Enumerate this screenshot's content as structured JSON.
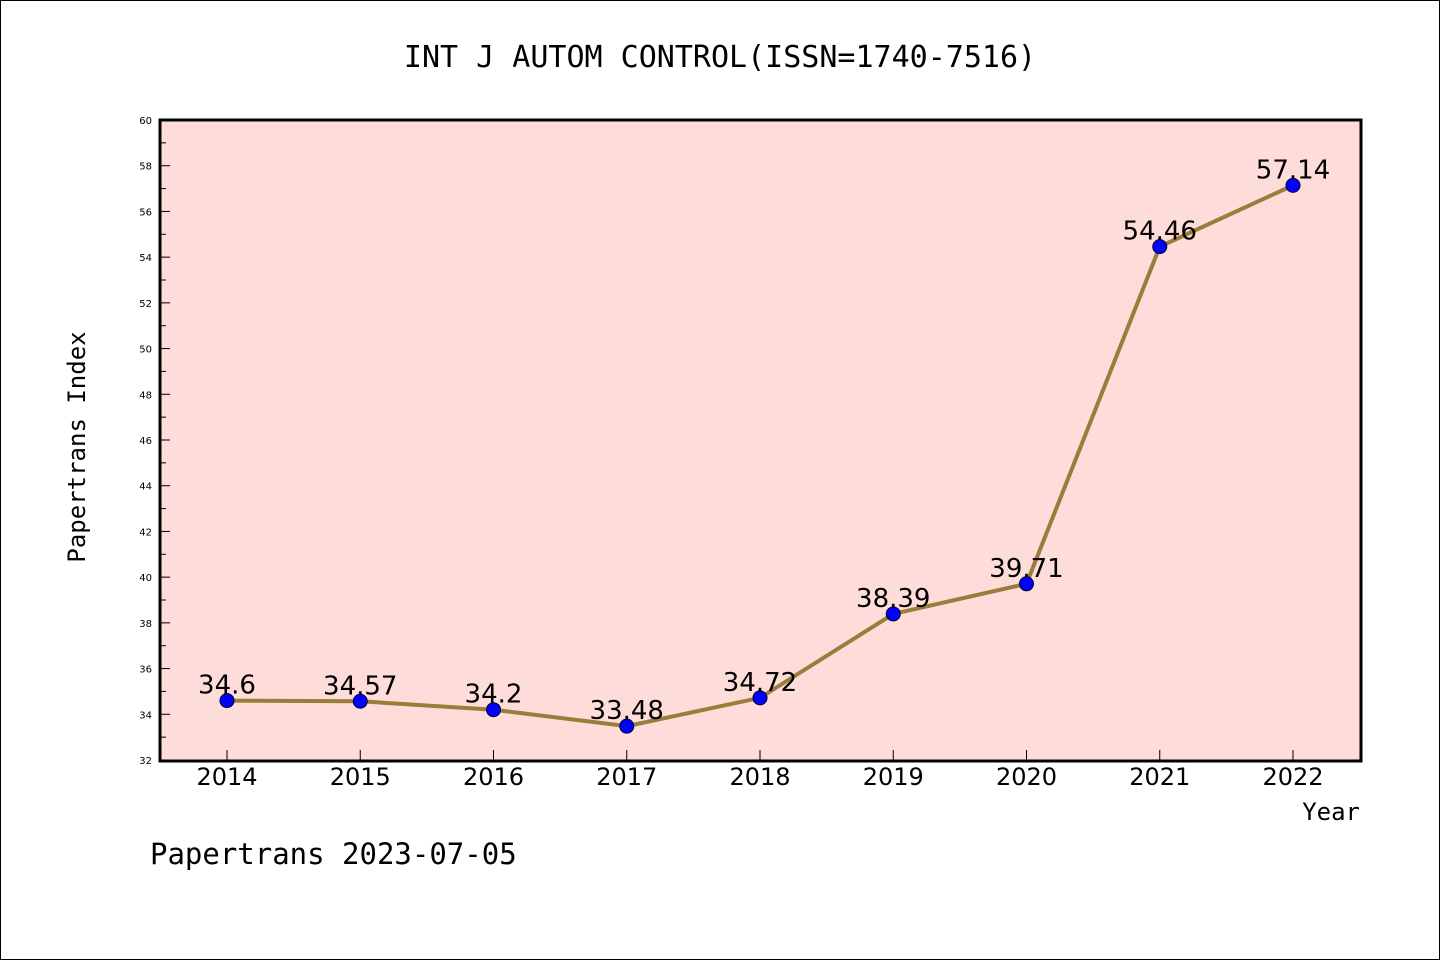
{
  "chart_data": {
    "type": "line",
    "title": "INT J AUTOM CONTROL(ISSN=1740-7516)",
    "xlabel": "Year",
    "ylabel": "Papertrans Index",
    "categories": [
      "2014",
      "2015",
      "2016",
      "2017",
      "2018",
      "2019",
      "2020",
      "2021",
      "2022"
    ],
    "values": [
      34.6,
      34.57,
      34.2,
      33.48,
      34.72,
      38.39,
      39.71,
      54.46,
      57.14
    ],
    "data_labels": [
      "34.6",
      "34.57",
      "34.2",
      "33.48",
      "34.72",
      "38.39",
      "39.71",
      "54.46",
      "57.14"
    ],
    "ylim": [
      32,
      60
    ],
    "yticks": [
      "32",
      "34",
      "36",
      "38",
      "40",
      "42",
      "44",
      "46",
      "48",
      "50",
      "52",
      "54",
      "56",
      "58",
      "60"
    ],
    "grid": false,
    "colors": {
      "plot_background": "#fddcda",
      "line": "#9a7d3a",
      "marker": "#0000ff"
    }
  },
  "footer": "Papertrans 2023-07-05"
}
